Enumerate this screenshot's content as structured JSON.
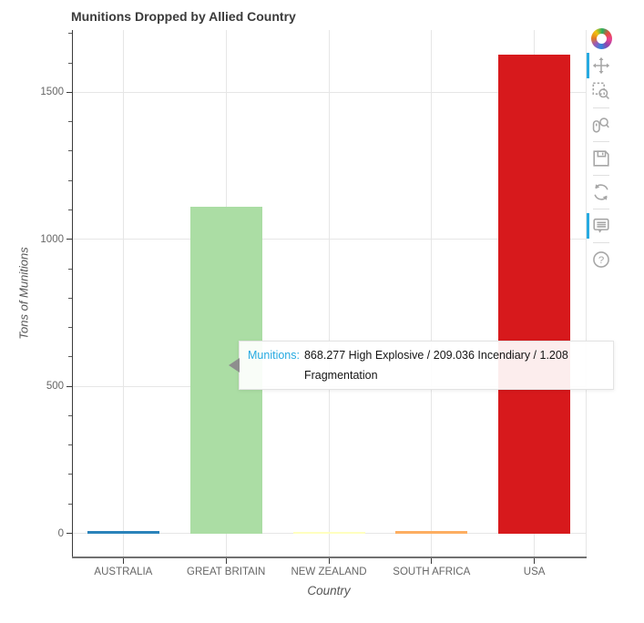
{
  "chart_data": {
    "type": "bar",
    "title": "Munitions Dropped by Allied Country",
    "categories": [
      "AUSTRALIA",
      "GREAT BRITAIN",
      "NEW ZEALAND",
      "SOUTH AFRICA",
      "USA"
    ],
    "values": [
      9.58,
      1112.6,
      2.74,
      8.44,
      1629
    ],
    "bar_colors": [
      "#2b83ba",
      "#abdda4",
      "#ffffbf",
      "#fdae61",
      "#d7191c"
    ],
    "xlabel": "Country",
    "ylabel": "Tons of Munitions",
    "yticks": [
      0,
      500,
      1000,
      1500
    ],
    "minor_tick_interval": 100,
    "ylim": [
      -82,
      1712
    ],
    "grid": "both",
    "bar_width_fraction": 0.7,
    "legend": "none"
  },
  "tooltip": {
    "label": "Munitions:",
    "value": "868.277 High Explosive / 209.036 Incendiary / 1.208 Fragmentation",
    "label_color": "#26aae1",
    "anchor_category": "GREAT BRITAIN"
  },
  "toolbar": {
    "logo": "bokeh-logo",
    "active_color": "#26aae1",
    "tools": [
      {
        "id": "pan",
        "active": true
      },
      {
        "id": "box-zoom",
        "active": false
      },
      {
        "id": "wheel-zoom",
        "active": false
      },
      {
        "id": "save",
        "active": false
      },
      {
        "id": "reset",
        "active": false
      },
      {
        "id": "hover",
        "active": true
      },
      {
        "id": "help",
        "active": false
      }
    ]
  },
  "colors": {
    "grid": "#e6e6e6",
    "axis": "#3a3a3a",
    "tick_label": "#666666",
    "axis_label": "#555555",
    "title": "#3b3b3b",
    "toolbar_icon": "#a6a6a6"
  }
}
